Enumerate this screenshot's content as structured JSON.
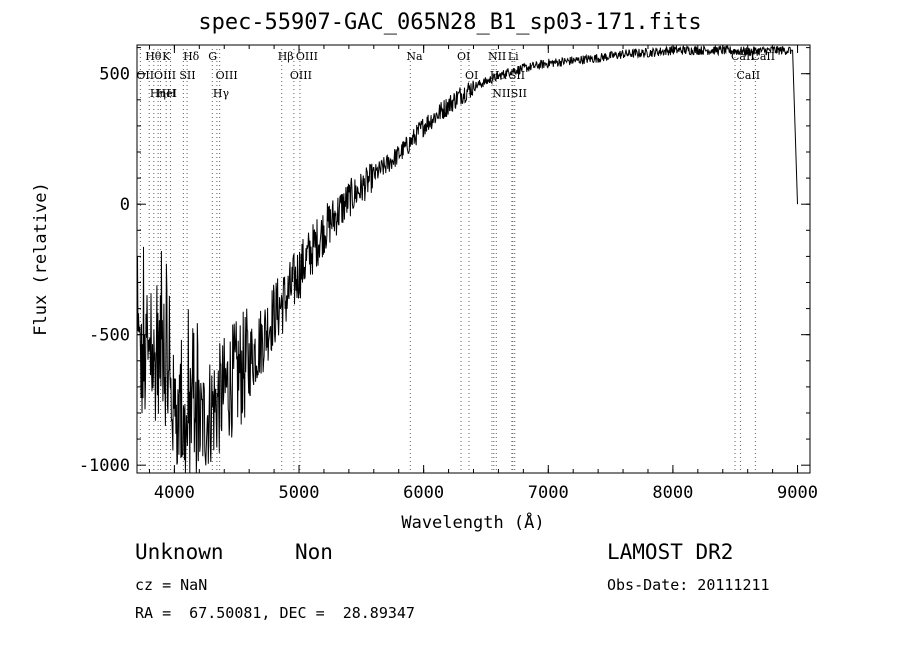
{
  "title": "spec-55907-GAC_065N28_B1_sp03-171.fits",
  "footer": {
    "object_class": "Unknown",
    "object_subclass": "Non",
    "survey": "LAMOST DR2",
    "cz": "cz = NaN",
    "obs_date": "Obs-Date: 20111211",
    "radec": "RA =  67.50081, DEC =  28.89347"
  },
  "chart_data": {
    "type": "line",
    "title": "spec-55907-GAC_065N28_B1_sp03-171.fits",
    "xlabel": "Wavelength (Å)",
    "ylabel": "Flux (relative)",
    "xlim": [
      3700,
      9100
    ],
    "ylim": [
      -1030,
      610
    ],
    "xticks": [
      4000,
      5000,
      6000,
      7000,
      8000,
      9000
    ],
    "yticks": [
      -1000,
      -500,
      0,
      500
    ],
    "grid": false,
    "line_color": "#000000",
    "marker_color": "#cc3333",
    "series": [
      {
        "x": [
          3700,
          3750,
          3800,
          3850,
          3900,
          3950,
          4000,
          4050,
          4100,
          4150,
          4200,
          4250,
          4300,
          4350,
          4400,
          4450,
          4500,
          4600,
          4700,
          4800,
          4900,
          5000,
          5100,
          5200,
          5300,
          5400,
          5500,
          5600,
          5700,
          5800,
          5900,
          6000,
          6100,
          6200,
          6300,
          6400,
          6500,
          6600,
          6700,
          6800,
          6900,
          7000,
          7200,
          7400,
          7600,
          7800,
          8000,
          8200,
          8400,
          8600,
          8800,
          8950,
          9000
        ],
        "y": [
          -550,
          -650,
          -600,
          -620,
          -550,
          -700,
          -800,
          -850,
          -900,
          -870,
          -850,
          -820,
          -780,
          -760,
          -720,
          -680,
          -660,
          -600,
          -520,
          -420,
          -360,
          -260,
          -180,
          -100,
          -40,
          20,
          60,
          110,
          150,
          190,
          240,
          300,
          340,
          380,
          420,
          450,
          470,
          490,
          510,
          520,
          530,
          540,
          550,
          560,
          575,
          580,
          590,
          590,
          590,
          585,
          590,
          590,
          0
        ]
      }
    ],
    "lines": [
      {
        "name": "Hθ",
        "x": 3798
      },
      {
        "name": "OII",
        "x": 3727
      },
      {
        "name": "OIII",
        "x": 3869
      },
      {
        "name": "Hη",
        "x": 3835
      },
      {
        "name": "HeI",
        "x": 3889
      },
      {
        "name": "K",
        "x": 3934
      },
      {
        "name": "H",
        "x": 3969
      },
      {
        "name": "Hδ",
        "x": 4102
      },
      {
        "name": "SII",
        "x": 4072
      },
      {
        "name": "G",
        "x": 4304
      },
      {
        "name": "OIII",
        "x": 4363
      },
      {
        "name": "Hγ",
        "x": 4341
      },
      {
        "name": "Hβ",
        "x": 4861
      },
      {
        "name": "OIII",
        "x": 4959
      },
      {
        "name": "OIII",
        "x": 5007
      },
      {
        "name": "Na",
        "x": 5893
      },
      {
        "name": "OI",
        "x": 6300
      },
      {
        "name": "OI",
        "x": 6364
      },
      {
        "name": "NII",
        "x": 6548
      },
      {
        "name": "Hα",
        "x": 6563
      },
      {
        "name": "NII",
        "x": 6583
      },
      {
        "name": "Li",
        "x": 6708
      },
      {
        "name": "SII",
        "x": 6716
      },
      {
        "name": "SII",
        "x": 6731
      },
      {
        "name": "CaII",
        "x": 8498
      },
      {
        "name": "CaII",
        "x": 8542
      },
      {
        "name": "CaII",
        "x": 8662
      }
    ]
  }
}
